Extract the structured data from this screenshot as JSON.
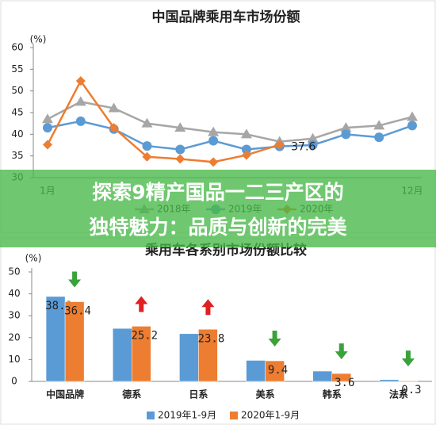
{
  "banner": [
    "探索9精产国品一二三产区的",
    "独特魅力：品质与创新的完美"
  ],
  "chart_data": [
    {
      "type": "line",
      "title": "中国品牌乘用车市场份额",
      "y_label": "(%)",
      "categories": [
        "1月",
        null,
        null,
        null,
        null,
        null,
        null,
        null,
        null,
        null,
        null,
        "12月"
      ],
      "series": [
        {
          "name": "2018年",
          "color": "#a6a6a6",
          "marker": "triangle",
          "values": [
            43.5,
            47.5,
            46,
            42.5,
            41.5,
            40.5,
            40,
            38.3,
            39,
            41.5,
            42,
            44
          ]
        },
        {
          "name": "2019年",
          "color": "#5b9bd5",
          "marker": "circle",
          "values": [
            41.5,
            43,
            41.2,
            37.3,
            36.5,
            38.5,
            36.5,
            37.2,
            37.5,
            40,
            39.3,
            42
          ]
        },
        {
          "name": "2020年",
          "color": "#ed7d31",
          "marker": "diamond",
          "values": [
            37.6,
            52.3,
            41.5,
            34.8,
            34.3,
            33.6,
            35.2,
            37.6,
            null,
            null,
            null,
            null
          ],
          "value_labels": [
            null,
            null,
            null,
            null,
            null,
            null,
            null,
            "37.6",
            null,
            null,
            null,
            null
          ]
        }
      ],
      "ylim": [
        30,
        60
      ],
      "yticks": [
        30,
        35,
        40,
        45,
        50,
        55,
        60
      ]
    },
    {
      "type": "bar",
      "title": "乘用车各系别市场份额比较",
      "y_label": "(%)",
      "categories": [
        "中国品牌",
        "德系",
        "日系",
        "美系",
        "韩系",
        "法系"
      ],
      "series": [
        {
          "name": "2019年1-9月",
          "color": "#5b9bd5",
          "values": [
            38.8,
            24.2,
            21.8,
            9.6,
            4.7,
            0.8
          ],
          "value_labels": [
            "38.8",
            null,
            null,
            null,
            null,
            null
          ]
        },
        {
          "name": "2020年1-9月",
          "color": "#ed7d31",
          "values": [
            36.4,
            25.2,
            23.8,
            9.4,
            3.6,
            0.3
          ]
        }
      ],
      "ylim": [
        0,
        50
      ],
      "yticks": [
        0,
        10,
        20,
        30,
        40,
        50
      ]
    }
  ]
}
